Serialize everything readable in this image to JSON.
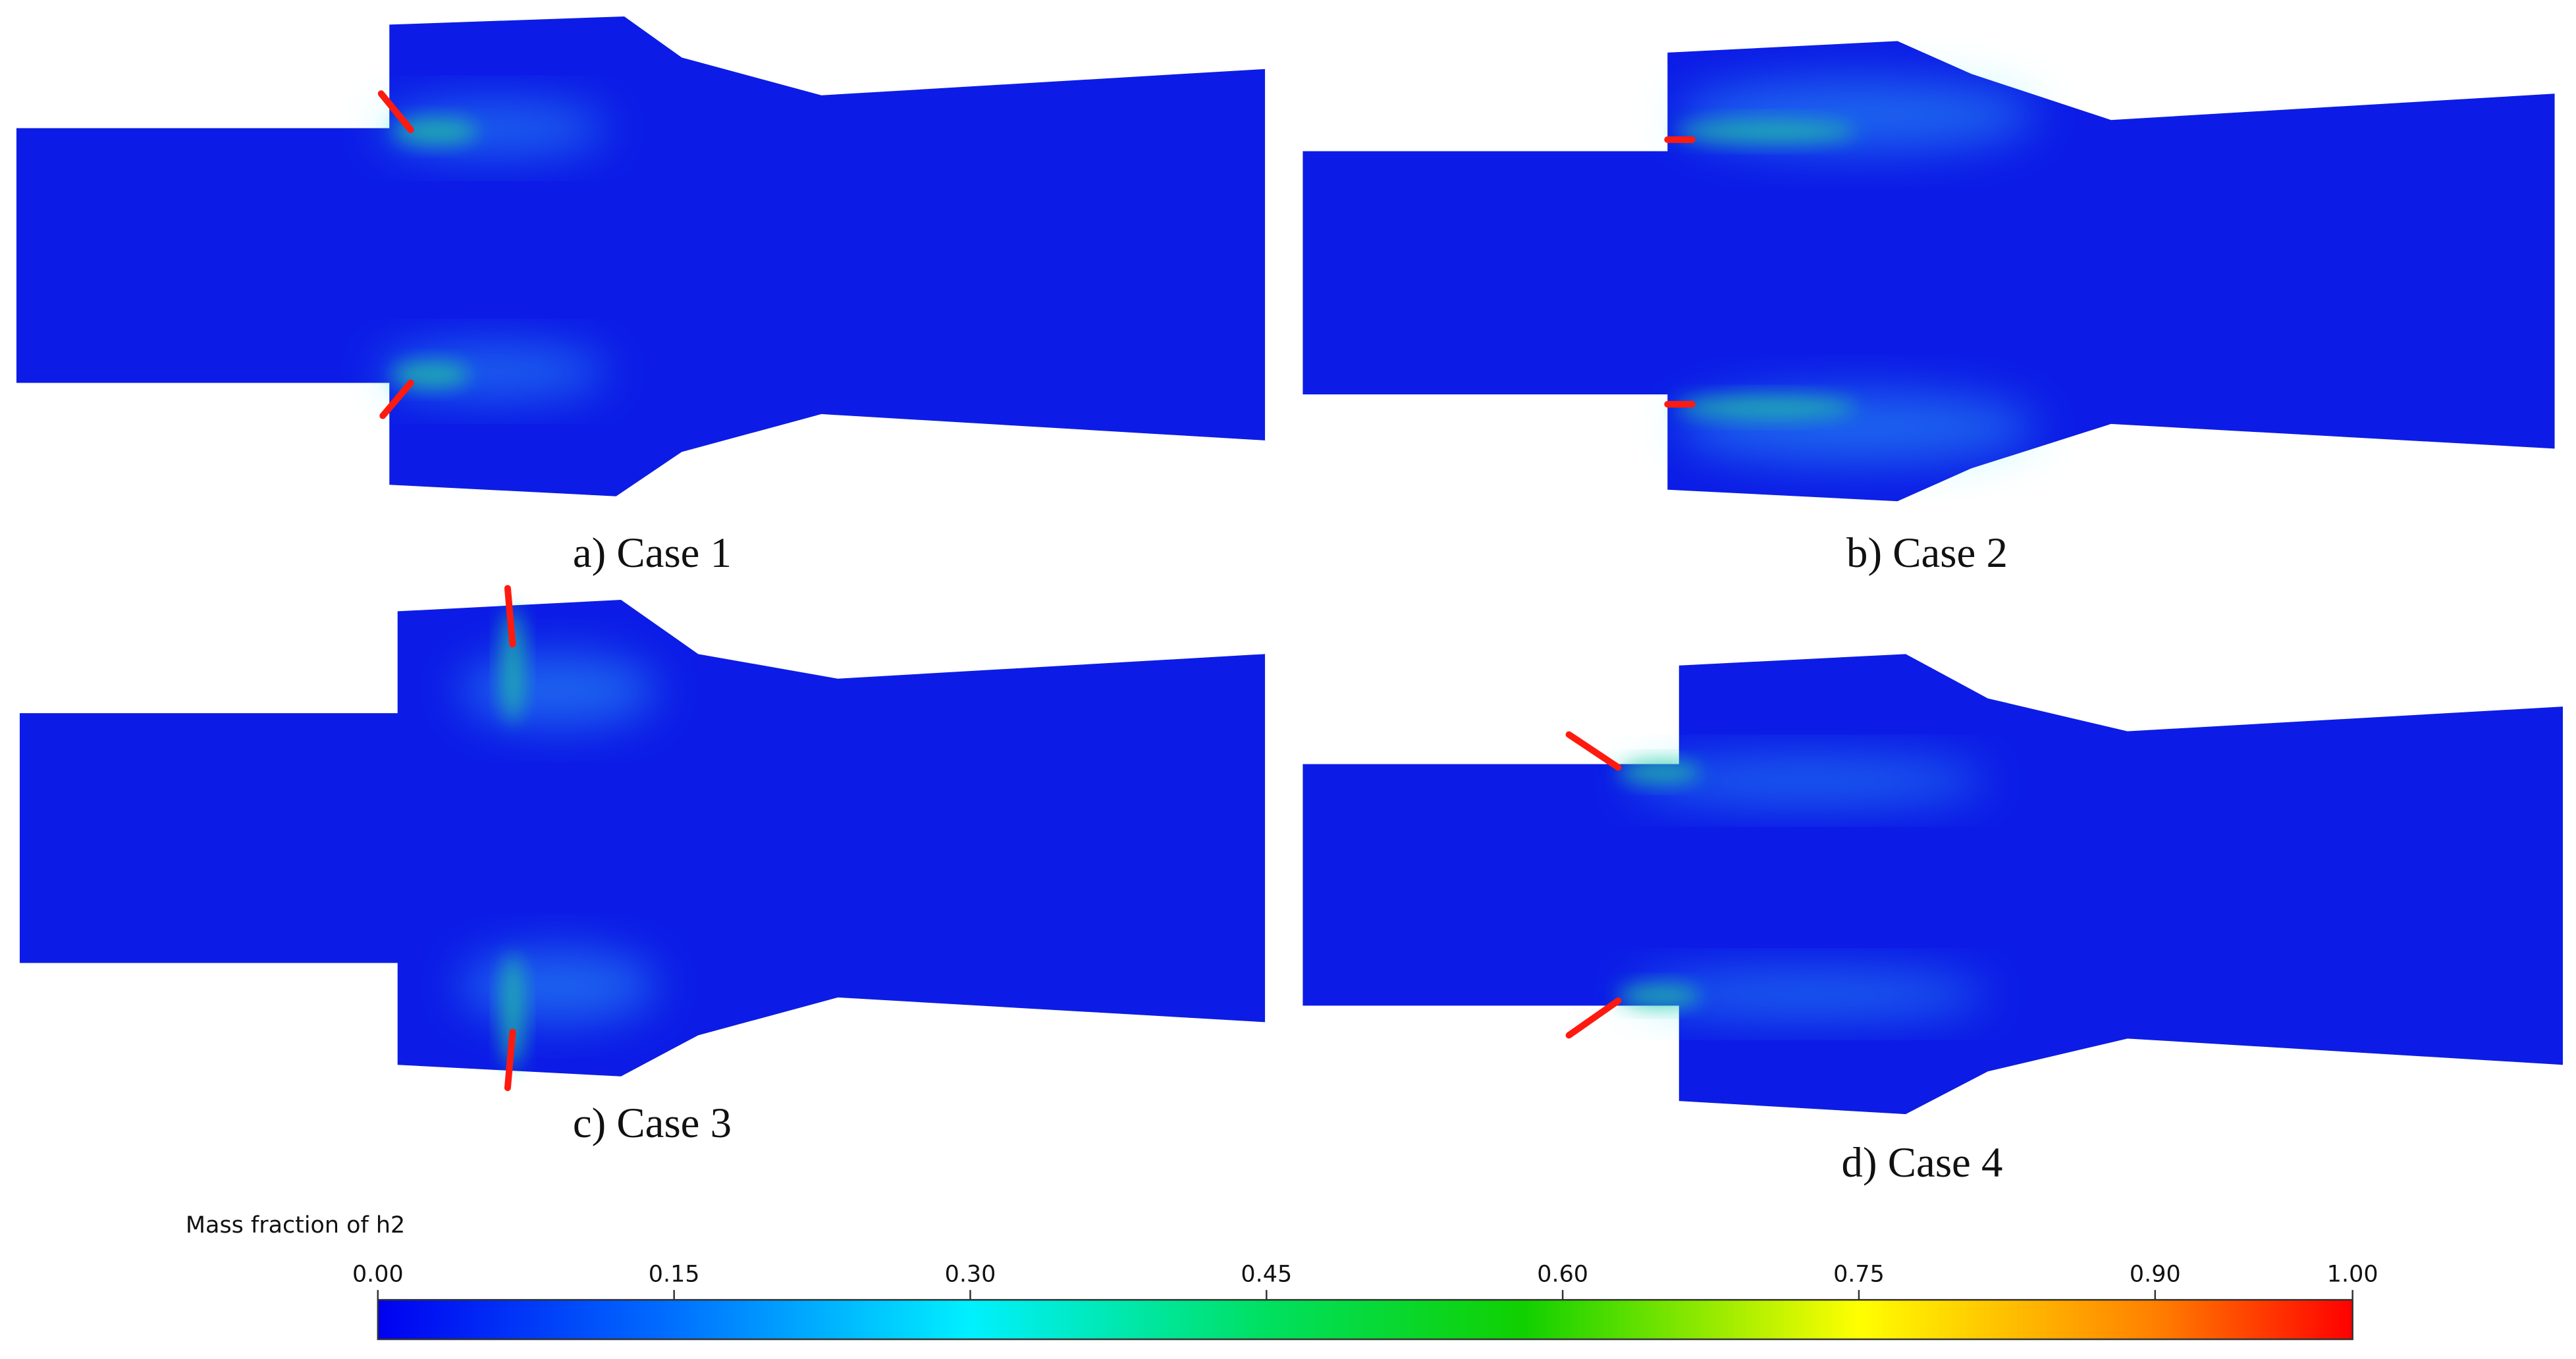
{
  "panels": [
    {
      "caption": "a) Case 1"
    },
    {
      "caption": "b) Case 2"
    },
    {
      "caption": "c) Case 3"
    },
    {
      "caption": "d) Case 4"
    }
  ],
  "colorbar": {
    "title": "Mass fraction of h2",
    "lim": [
      0,
      1
    ],
    "ticks": [
      {
        "value": 0,
        "label": "0.00"
      },
      {
        "value": 0.15,
        "label": "0.15"
      },
      {
        "value": 0.3,
        "label": "0.30"
      },
      {
        "value": 0.45,
        "label": "0.45"
      },
      {
        "value": 0.6,
        "label": "0.60"
      },
      {
        "value": 0.75,
        "label": "0.75"
      },
      {
        "value": 0.9,
        "label": "0.90"
      },
      {
        "value": 1,
        "label": "1.00"
      }
    ]
  }
}
